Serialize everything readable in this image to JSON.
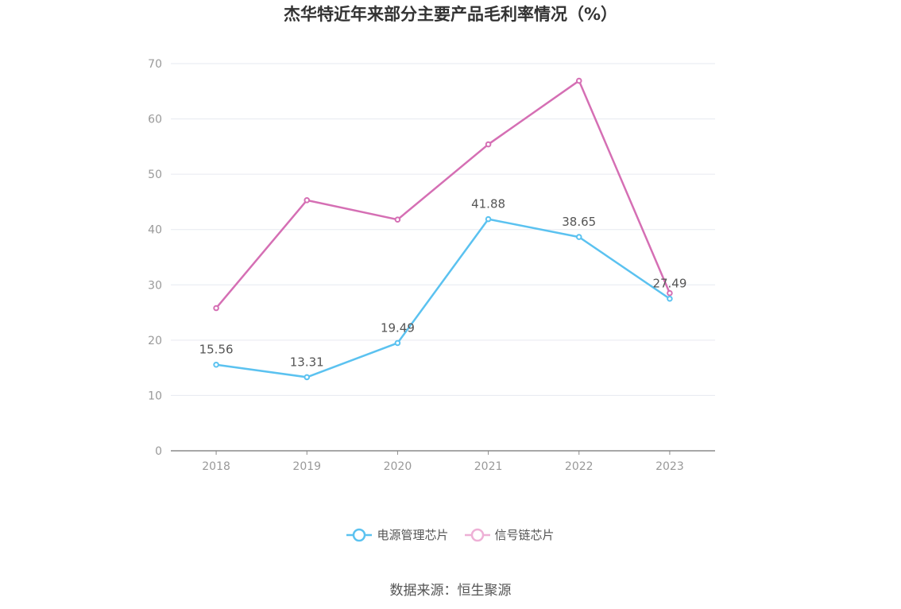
{
  "chart_data": {
    "type": "line",
    "title": "杰华特近年来部分主要产品毛利率情况（%）",
    "xlabel": "",
    "ylabel": "",
    "categories": [
      "2018",
      "2019",
      "2020",
      "2021",
      "2022",
      "2023"
    ],
    "ylim": [
      0,
      70
    ],
    "yticks": [
      0,
      10,
      20,
      30,
      40,
      50,
      60,
      70
    ],
    "grid": true,
    "legend_position": "bottom",
    "series": [
      {
        "name": "电源管理芯片",
        "color": "#5bc2f0",
        "values": [
          15.56,
          13.31,
          19.49,
          41.88,
          38.65,
          27.49
        ],
        "labels": [
          "15.56",
          "13.31",
          "19.49",
          "41.88",
          "38.65",
          "27.49"
        ]
      },
      {
        "name": "信号链芯片",
        "color": "#d56fb4",
        "values": [
          25.8,
          45.3,
          41.8,
          55.4,
          66.9,
          28.5
        ],
        "labels": null
      }
    ]
  },
  "legend": {
    "items": [
      {
        "label": "电源管理芯片",
        "color": "#5bc2f0"
      },
      {
        "label": "信号链芯片",
        "color": "#eeb0d6"
      }
    ]
  },
  "source": "数据来源：恒生聚源"
}
